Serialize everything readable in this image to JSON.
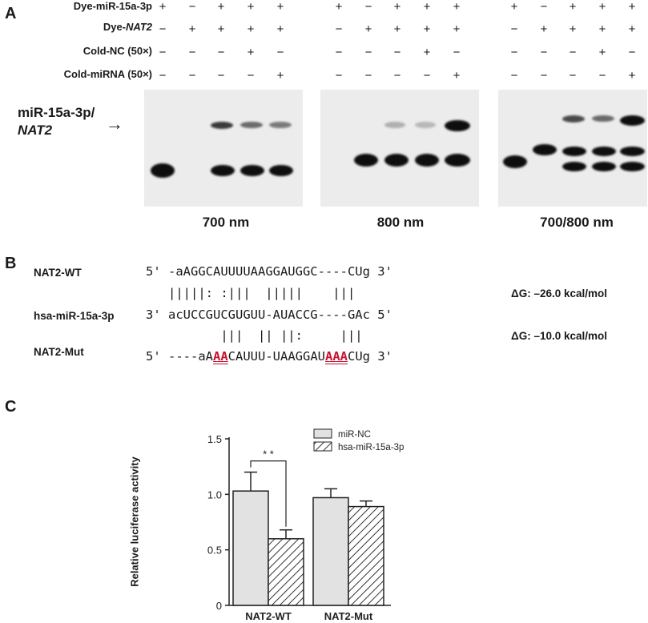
{
  "panel_a": {
    "letter": "A",
    "row_labels": [
      "Dye-miR-15a-3p",
      "Dye-",
      "Cold-NC (50×)",
      "Cold-miRNA (50×)"
    ],
    "nat2_italic": "NAT2",
    "signs": [
      [
        "+",
        "−",
        "+",
        "+",
        "+"
      ],
      [
        "−",
        "+",
        "+",
        "+",
        "+"
      ],
      [
        "−",
        "−",
        "−",
        "+",
        "−"
      ],
      [
        "−",
        "−",
        "−",
        "−",
        "+"
      ]
    ],
    "complex_label_line1": "miR-15a-3p/",
    "complex_label_line2": "NAT2",
    "arrow": "→",
    "gel_captions": [
      "700 nm",
      "800 nm",
      "700/800 nm"
    ]
  },
  "panel_b": {
    "letter": "B",
    "seq_names": [
      "NAT2-WT",
      "hsa-miR-15a-3p",
      "NAT2-Mut"
    ],
    "wt": {
      "p5": "5'",
      "pre": " -aAGGCAUUUUAAGGAUGGC----CUg ",
      "p3": "3'"
    },
    "pair1": "   |||||: :|||  |||||    |||",
    "mir": {
      "p3": "3'",
      "seq": " acUCCGUCGUGUU-AUACCG----GAc ",
      "p5": "5'"
    },
    "pair2": "          |||  || ||:     |||",
    "mut": {
      "p5": "5'",
      "a": " ----aA",
      "m1": "AA",
      "b": "CAUUU-UAAGGAU",
      "m2": "AAA",
      "c": "CUg ",
      "p3": "3'"
    },
    "dg1": "ΔG: –26.0 kcal/mol",
    "dg2": "ΔG: –10.0 kcal/mol"
  },
  "panel_c": {
    "letter": "C",
    "ylabel": "Relative luciferase activity",
    "significance": "* *",
    "chart_data": {
      "type": "bar",
      "categories": [
        "NAT2-WT",
        "NAT2-Mut"
      ],
      "series": [
        {
          "name": "miR-NC",
          "values": [
            1.03,
            0.97
          ],
          "errors": [
            0.17,
            0.08
          ],
          "fill": "#e2e2e2"
        },
        {
          "name": "hsa-miR-15a-3p",
          "values": [
            0.6,
            0.89
          ],
          "errors": [
            0.08,
            0.05
          ],
          "fill": "hatched"
        }
      ],
      "yticks": [
        "0",
        "0.5",
        "1.0",
        "1.5"
      ],
      "ylim": [
        0,
        1.5
      ],
      "legend": "top-right"
    }
  }
}
